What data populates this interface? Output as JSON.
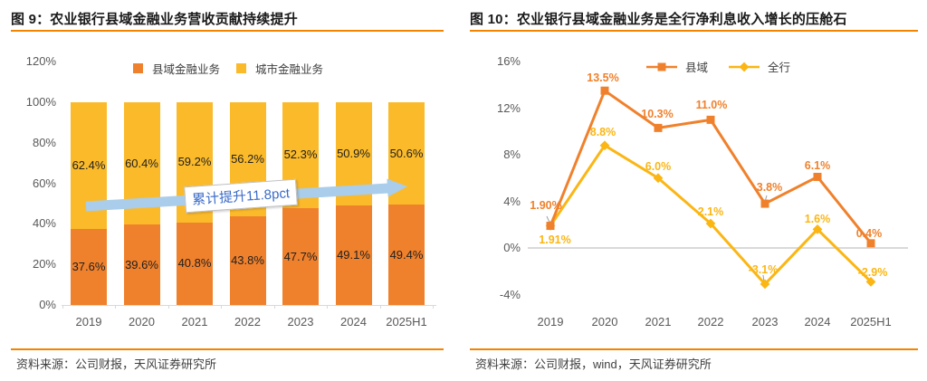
{
  "figure_left": {
    "title": "图 9：农业银行县域金融业务营收贡献持续提升",
    "source": "资料来源：公司财报，天风证券研究所"
  },
  "figure_right": {
    "title": "图 10：农业银行县域金融业务是全行净利息收入增长的压舱石",
    "source": "资料来源：公司财报，wind，天风证券研究所"
  },
  "chart_data": [
    {
      "type": "bar",
      "subtype": "stacked-percent",
      "title": "农业银行县域金融业务营收贡献持续提升",
      "categories": [
        "2019",
        "2020",
        "2021",
        "2022",
        "2023",
        "2024",
        "2025H1"
      ],
      "series": [
        {
          "name": "县域金融业务",
          "color": "#F0812C",
          "values": [
            37.6,
            39.6,
            40.8,
            43.8,
            47.7,
            49.1,
            49.4
          ],
          "labels": [
            "37.6%",
            "39.6%",
            "40.8%",
            "43.8%",
            "47.7%",
            "49.1%",
            "49.4%"
          ]
        },
        {
          "name": "城市金融业务",
          "color": "#FBBA2A",
          "values": [
            62.4,
            60.4,
            59.2,
            56.2,
            52.3,
            50.9,
            50.6
          ],
          "labels": [
            "62.4%",
            "60.4%",
            "59.2%",
            "56.2%",
            "52.3%",
            "50.9%",
            "50.6%"
          ]
        }
      ],
      "y_ticks": [
        "0%",
        "20%",
        "40%",
        "60%",
        "80%",
        "100%",
        "120%"
      ],
      "ylim": [
        0,
        120
      ],
      "grid": false,
      "legend_position": "top",
      "annotation": "累计提升11.8pct"
    },
    {
      "type": "line",
      "title": "农业银行县域金融业务是全行净利息收入增长的压舱石",
      "categories": [
        "2019",
        "2020",
        "2021",
        "2022",
        "2023",
        "2024",
        "2025H1"
      ],
      "series": [
        {
          "name": "县域",
          "color": "#F0812C",
          "marker": "square",
          "values": [
            1.9,
            13.5,
            10.3,
            11.0,
            3.8,
            6.1,
            0.4
          ],
          "labels": [
            "1.90%",
            "13.5%",
            "10.3%",
            "11.0%",
            "3.8%",
            "6.1%",
            "0.4%"
          ]
        },
        {
          "name": "全行",
          "color": "#FBB614",
          "marker": "diamond",
          "values": [
            1.91,
            8.8,
            6.0,
            2.1,
            -3.1,
            1.6,
            -2.9
          ],
          "labels": [
            "1.91%",
            "8.8%",
            "6.0%",
            "2.1%",
            "-3.1%",
            "1.6%",
            "-2.9%"
          ]
        }
      ],
      "y_ticks": [
        "-4%",
        "0%",
        "4%",
        "8%",
        "12%",
        "16%"
      ],
      "ylim": [
        -4,
        16
      ],
      "grid": false,
      "legend_position": "top"
    }
  ],
  "colors": {
    "accent_rule": "#F28500",
    "annotation_text": "#3A6BC8",
    "arrow_fill": "#A9CDEA",
    "axis_text": "#595959",
    "gridline": "#D9D9D9",
    "leader_line": "#A0A0A0"
  }
}
